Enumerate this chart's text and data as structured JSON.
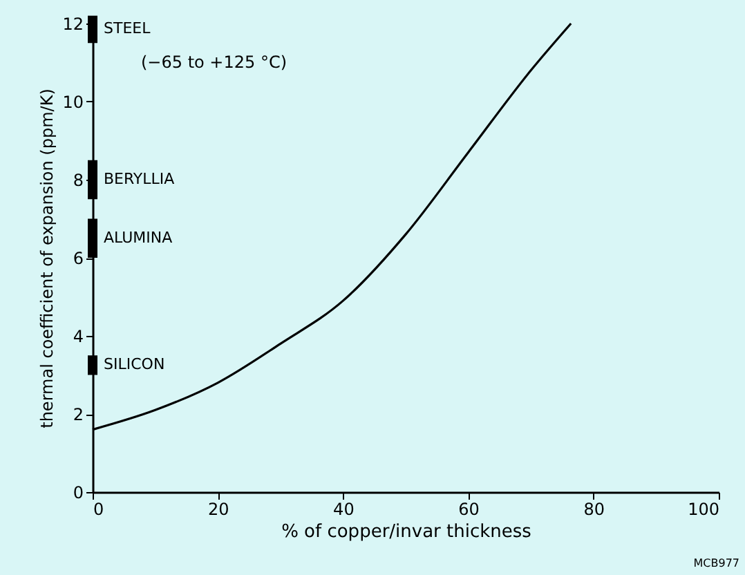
{
  "chart_data": {
    "type": "line",
    "xlabel": "% of copper/invar thickness",
    "ylabel": "thermal coefficient of expansion (ppm/K)",
    "xlim": [
      0,
      100
    ],
    "xticks": [
      0,
      20,
      40,
      60,
      80,
      100
    ],
    "ylim": [
      0,
      12
    ],
    "yticks": [
      0,
      2,
      4,
      6,
      8,
      10,
      12
    ],
    "grid": false,
    "marker": "none",
    "line_style": "solid",
    "series": [
      {
        "color": "#000000",
        "x": [
          0,
          10,
          20,
          30,
          40,
          50,
          60,
          70,
          76.4
        ],
        "values": [
          1.6,
          2.1,
          2.8,
          3.8,
          4.9,
          6.6,
          8.7,
          10.8,
          12.0
        ]
      },
      {
        "type": "bar",
        "name": "STEEL",
        "color": "#000000",
        "x": [
          0
        ],
        "base": [
          11.5
        ],
        "values": [
          0.7
        ]
      },
      {
        "type": "bar",
        "name": "BERYLLIA",
        "color": "#000000",
        "x": [
          0
        ],
        "base": [
          7.5
        ],
        "values": [
          1.0
        ]
      },
      {
        "type": "bar",
        "name": "ALUMINA",
        "color": "#000000",
        "x": [
          0
        ],
        "base": [
          6.0
        ],
        "values": [
          1.0
        ]
      },
      {
        "type": "bar",
        "name": "SILICON",
        "color": "#000000",
        "x": [
          0
        ],
        "base": [
          3.0
        ],
        "values": [
          0.5
        ]
      }
    ],
    "annotations": [
      "(−65 to +125 °C)",
      "MCB977"
    ]
  }
}
